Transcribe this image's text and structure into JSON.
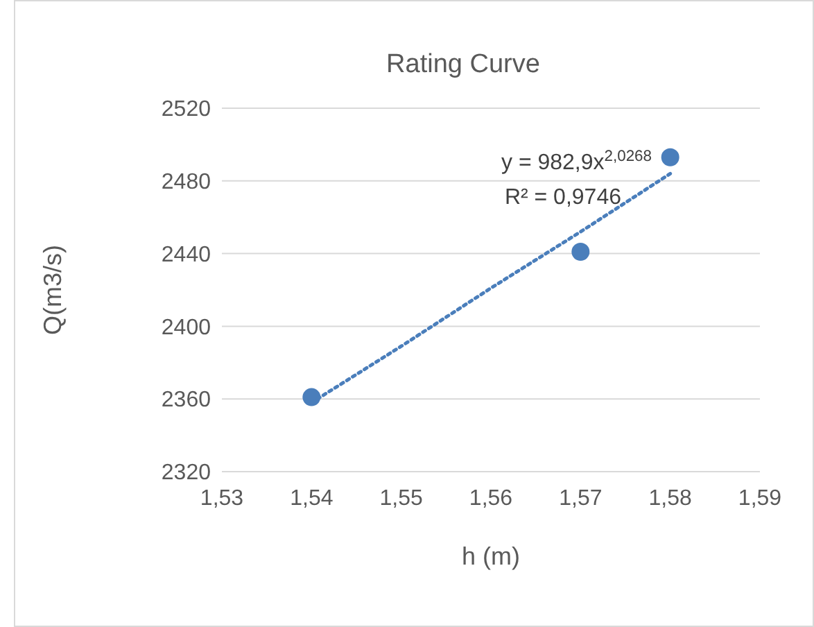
{
  "chart_data": {
    "type": "scatter",
    "title": "Rating Curve",
    "xlabel": "h (m)",
    "ylabel": "Q(m3/s)",
    "xlim": [
      1.53,
      1.59
    ],
    "xticks": [
      {
        "value": 1.53,
        "label": "1,53"
      },
      {
        "value": 1.54,
        "label": "1,54"
      },
      {
        "value": 1.55,
        "label": "1,55"
      },
      {
        "value": 1.56,
        "label": "1,56"
      },
      {
        "value": 1.57,
        "label": "1,57"
      },
      {
        "value": 1.58,
        "label": "1,58"
      },
      {
        "value": 1.59,
        "label": "1,59"
      }
    ],
    "ylim": [
      2320,
      2520
    ],
    "yticks": [
      2320,
      2360,
      2400,
      2440,
      2480,
      2520
    ],
    "grid": "y",
    "series": [
      {
        "color": "#4a7ebb",
        "marker": "circle",
        "x": [
          1.54,
          1.57,
          1.58
        ],
        "values": [
          2361,
          2441,
          2493
        ]
      },
      {
        "type": "line",
        "color": "#4a7ebb",
        "marker": "none",
        "line_style": "dotted",
        "x": [
          1.54,
          1.55,
          1.56,
          1.57,
          1.58
        ],
        "values": [
          2358,
          2389,
          2421,
          2452,
          2484
        ]
      }
    ],
    "annotations": [
      "y = 982,9x$^{2,0268}$",
      "R² = 0,9746"
    ]
  }
}
